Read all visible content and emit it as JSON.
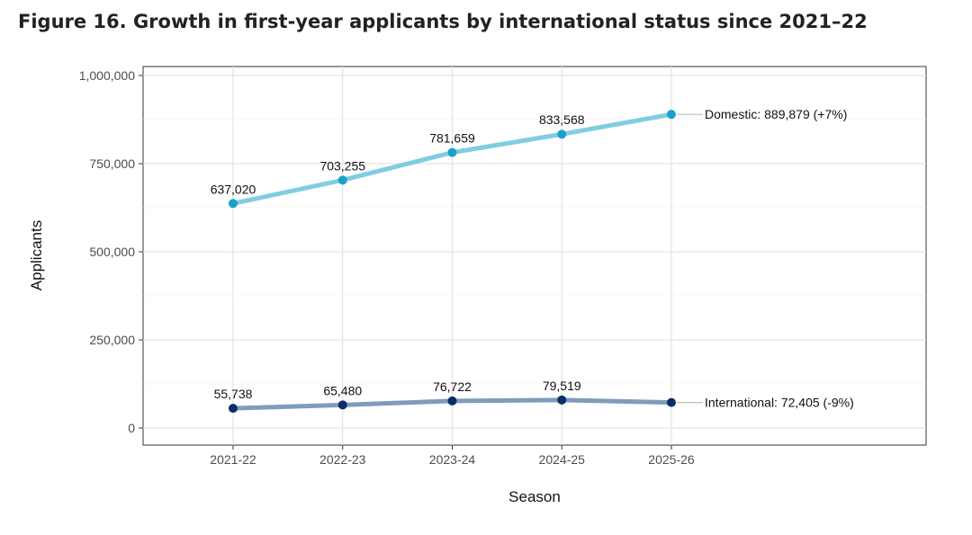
{
  "figure_title": "Figure 16. Growth in first-year applicants by international status since 2021–22",
  "chart_data": {
    "type": "line",
    "title": "Figure 16. Growth in first-year applicants by international status since 2021–22",
    "xlabel": "Season",
    "ylabel": "Applicants",
    "categories": [
      "2021-22",
      "2022-23",
      "2023-24",
      "2024-25",
      "2025-26"
    ],
    "ylim": [
      0,
      1000000
    ],
    "yticks": [
      0,
      250000,
      500000,
      750000,
      1000000
    ],
    "ytick_labels": [
      "0",
      "250,000",
      "500,000",
      "750,000",
      "1,000,000"
    ],
    "grid": true,
    "series": [
      {
        "name": "Domestic",
        "values": [
          637020,
          703255,
          781659,
          833568,
          889879
        ],
        "point_labels": [
          "637,020",
          "703,255",
          "781,659",
          "833,568"
        ],
        "end_label": "Domestic: 889,879 (+7%)",
        "line_color": "#7fcde3",
        "point_color": "#1aa0cc"
      },
      {
        "name": "International",
        "values": [
          55738,
          65480,
          76722,
          79519,
          72405
        ],
        "point_labels": [
          "55,738",
          "65,480",
          "76,722",
          "79,519"
        ],
        "end_label": "International: 72,405 (-9%)",
        "line_color": "#7f9cbc",
        "point_color": "#0b2d6b"
      }
    ]
  }
}
